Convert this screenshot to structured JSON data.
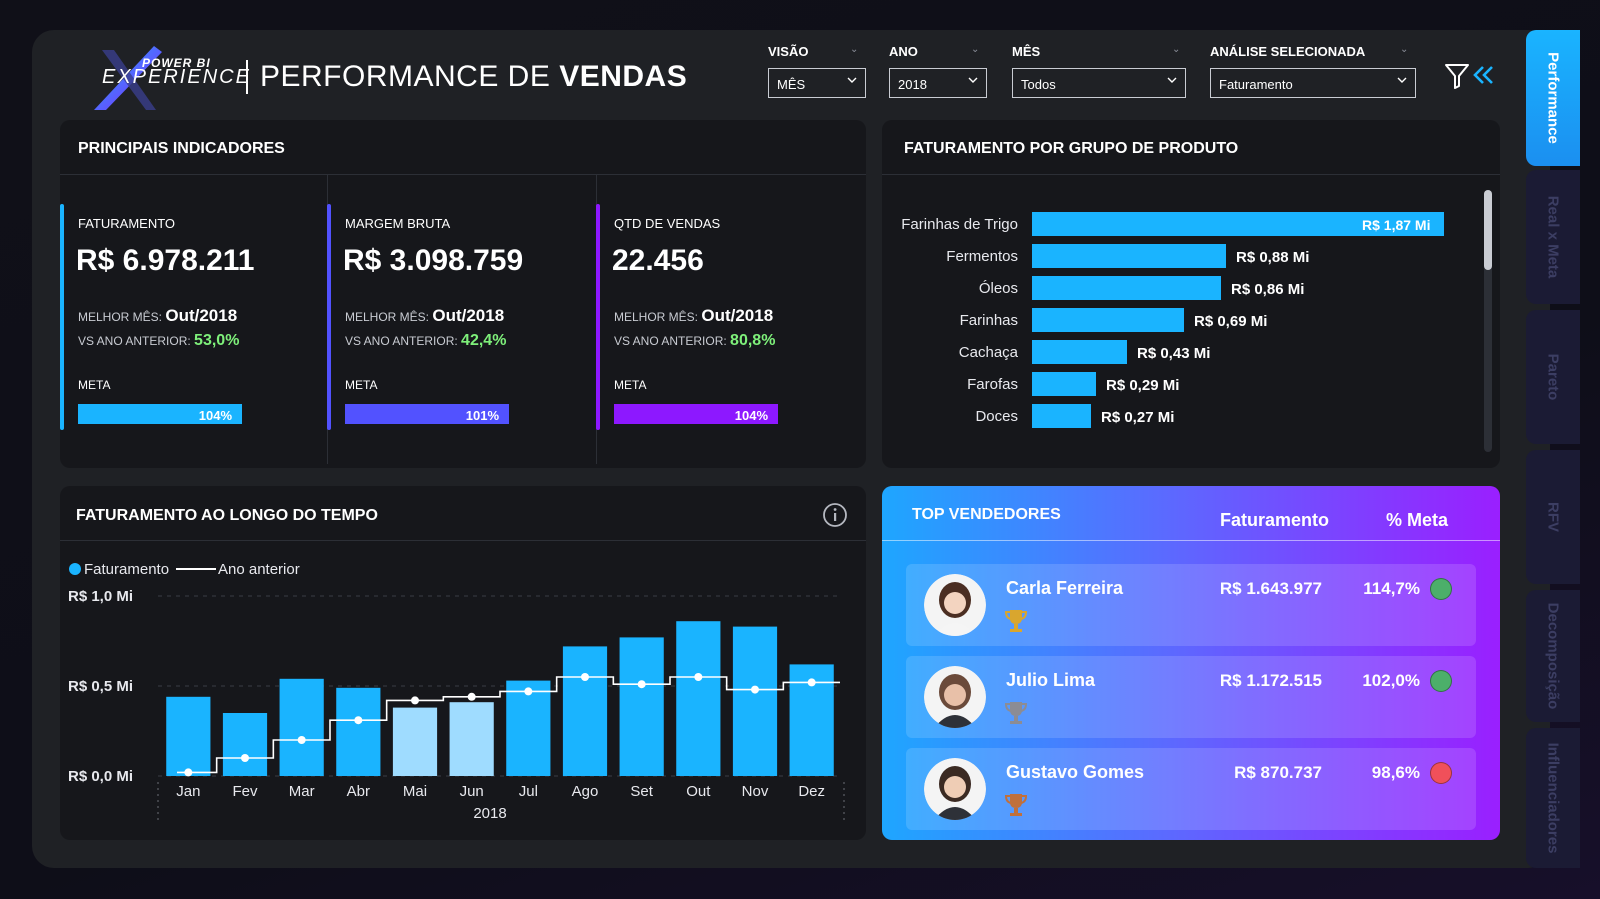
{
  "header": {
    "logo_top": "POWER BI",
    "logo_main": "EXPERIENCE",
    "title_prefix": "PERFORMANCE DE",
    "title_bold": "VENDAS"
  },
  "filters": [
    {
      "label": "VISÃO",
      "value": "MÊS"
    },
    {
      "label": "ANO",
      "value": "2018"
    },
    {
      "label": "MÊS",
      "value": "Todos"
    },
    {
      "label": "ANÁLISE SELECIONADA",
      "value": "Faturamento"
    }
  ],
  "kpis": {
    "section_title": "PRINCIPAIS INDICADORES",
    "items": [
      {
        "label": "FATURAMENTO",
        "value": "R$ 6.978.211",
        "best_label": "MELHOR MÊS:",
        "best": "Out/2018",
        "vs_label": "VS ANO ANTERIOR:",
        "vs": "53,0%",
        "meta_label": "META",
        "meta": "104%",
        "meta_fraction": 1.04,
        "color": "#1ab4ff"
      },
      {
        "label": "MARGEM BRUTA",
        "value": "R$ 3.098.759",
        "best_label": "MELHOR MÊS:",
        "best": "Out/2018",
        "vs_label": "VS ANO ANTERIOR:",
        "vs": "42,4%",
        "meta_label": "META",
        "meta": "101%",
        "meta_fraction": 1.01,
        "color": "#5252ff"
      },
      {
        "label": "QTD DE VENDAS",
        "value": "22.456",
        "best_label": "MELHOR MÊS:",
        "best": "Out/2018",
        "vs_label": "VS ANO ANTERIOR:",
        "vs": "80,8%",
        "meta_label": "META",
        "meta": "104%",
        "meta_fraction": 1.04,
        "color": "#8d18ff"
      }
    ]
  },
  "product_groups": {
    "title": "FATURAMENTO POR GRUPO DE PRODUTO",
    "items": [
      {
        "name": "Farinhas de Trigo",
        "value": 1.87,
        "label": "R$ 1,87 Mi"
      },
      {
        "name": "Fermentos",
        "value": 0.88,
        "label": "R$ 0,88 Mi"
      },
      {
        "name": "Óleos",
        "value": 0.86,
        "label": "R$ 0,86 Mi"
      },
      {
        "name": "Farinhas",
        "value": 0.69,
        "label": "R$ 0,69 Mi"
      },
      {
        "name": "Cachaça",
        "value": 0.43,
        "label": "R$ 0,43 Mi"
      },
      {
        "name": "Farofas",
        "value": 0.29,
        "label": "R$ 0,29 Mi"
      },
      {
        "name": "Doces",
        "value": 0.27,
        "label": "R$ 0,27 Mi"
      }
    ]
  },
  "time_chart": {
    "title": "FATURAMENTO AO LONGO DO TEMPO",
    "legend_bar": "Faturamento",
    "legend_line": "Ano anterior",
    "year_label": "2018"
  },
  "chart_data": {
    "type": "bar",
    "categories": [
      "Jan",
      "Fev",
      "Mar",
      "Abr",
      "Mai",
      "Jun",
      "Jul",
      "Ago",
      "Set",
      "Out",
      "Nov",
      "Dez"
    ],
    "series": [
      {
        "name": "Faturamento",
        "values": [
          0.44,
          0.35,
          0.54,
          0.49,
          0.38,
          0.41,
          0.53,
          0.72,
          0.77,
          0.86,
          0.83,
          0.62
        ]
      },
      {
        "name": "Ano anterior",
        "values": [
          0.02,
          0.1,
          0.2,
          0.31,
          0.42,
          0.44,
          0.47,
          0.55,
          0.51,
          0.55,
          0.48,
          0.52
        ]
      }
    ],
    "highlight_colors": {
      "selected": "#1ab4ff",
      "light": "#9fdcff"
    },
    "light_months": [
      "Mai",
      "Jun"
    ],
    "yticks": [
      "R$ 0,0 Mi",
      "R$ 0,5 Mi",
      "R$ 1,0 Mi"
    ],
    "ylim": [
      0,
      1.0
    ],
    "xlabel": "2018",
    "ylabel": ""
  },
  "sellers": {
    "title": "TOP VENDEDORES",
    "col_value": "Faturamento",
    "col_pct": "% Meta",
    "items": [
      {
        "name": "Carla Ferreira",
        "value": "R$ 1.643.977",
        "pct": "114,7%",
        "status": "#4caf6a",
        "trophy": "#d9a62e"
      },
      {
        "name": "Julio Lima",
        "value": "R$ 1.172.515",
        "pct": "102,0%",
        "status": "#4caf6a",
        "trophy": "#8c8c94"
      },
      {
        "name": "Gustavo Gomes",
        "value": "R$ 870.737",
        "pct": "98,6%",
        "status": "#f0505a",
        "trophy": "#c0703c"
      }
    ]
  },
  "side_tabs": [
    "Performance",
    "Real x Meta",
    "Pareto",
    "RFV",
    "Decomposição",
    "Influenciadores"
  ]
}
